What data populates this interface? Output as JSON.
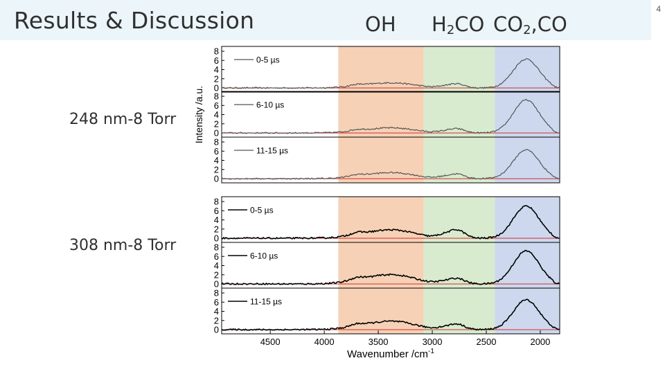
{
  "slide": {
    "title": "Results & Discussion",
    "page_number": "4",
    "regions": [
      {
        "label": "OH",
        "sub": "",
        "tail": ""
      },
      {
        "label": "H",
        "sub": "2",
        "tail": "CO"
      },
      {
        "label": "CO",
        "sub": "2",
        "tail": ",CO"
      }
    ],
    "conditions": [
      "248 nm-8 Torr",
      "308 nm-8 Torr"
    ]
  },
  "colors": {
    "oh_band": "#f6d1b6",
    "h2co_band": "#d9ebcf",
    "co_band": "#cdd8ee",
    "trace_248": "#555555",
    "trace_308": "#000000",
    "baseline": "#d03030"
  },
  "chart_data": {
    "type": "line",
    "xlabel": "Wavenumber /cm",
    "xlabel_sup": "-1",
    "ylabel": "Intensity /a.u.",
    "xlim": [
      4950,
      1820
    ],
    "ylim": [
      0,
      8
    ],
    "x_ticks": [
      4500,
      4000,
      3500,
      3000,
      2500,
      2000
    ],
    "y_ticks": [
      0,
      2,
      4,
      6,
      8
    ],
    "bands": [
      {
        "name": "OH",
        "from": 3870,
        "to": 3080
      },
      {
        "name": "H2CO",
        "from": 3080,
        "to": 2420
      },
      {
        "name": "CO2,CO",
        "from": 2420,
        "to": 1820
      }
    ],
    "panels": [
      {
        "group": "248 nm-8 Torr",
        "legend": "0-5 µs",
        "oh": 1.1,
        "h2co": 0.9,
        "co": 6.3
      },
      {
        "group": "248 nm-8 Torr",
        "legend": "6-10 µs",
        "oh": 1.1,
        "h2co": 0.9,
        "co": 7.2
      },
      {
        "group": "248 nm-8 Torr",
        "legend": "11-15 µs",
        "oh": 1.3,
        "h2co": 1.0,
        "co": 6.3
      },
      {
        "group": "308 nm-8 Torr",
        "legend": "0-5 µs",
        "oh": 1.8,
        "h2co": 1.8,
        "co": 7.0
      },
      {
        "group": "308 nm-8 Torr",
        "legend": "6-10 µs",
        "oh": 2.0,
        "h2co": 1.2,
        "co": 7.2
      },
      {
        "group": "308 nm-8 Torr",
        "legend": "11-15 µs",
        "oh": 1.8,
        "h2co": 1.2,
        "co": 6.5
      }
    ]
  }
}
